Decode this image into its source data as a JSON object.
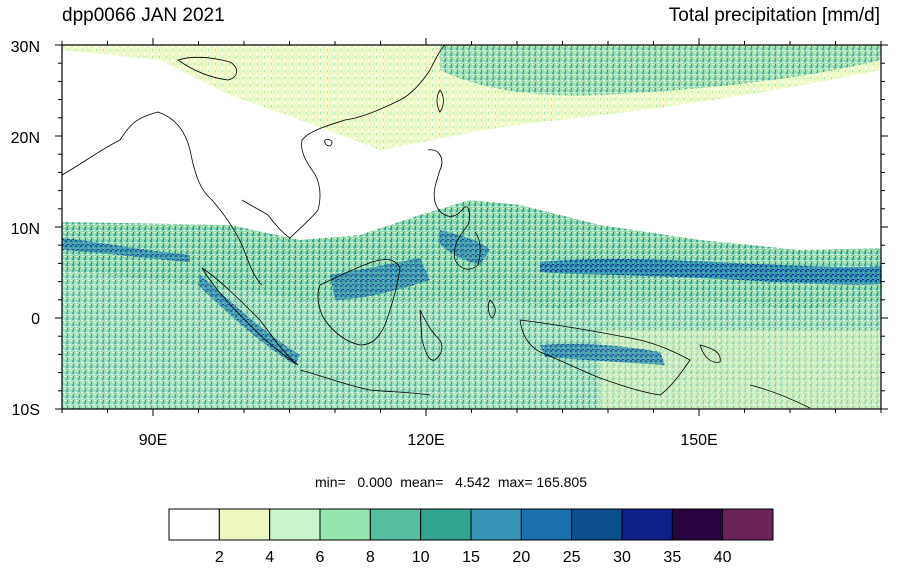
{
  "header": {
    "title_left": "dpp0066 JAN 2021",
    "title_right": "Total precipitation [mm/d]"
  },
  "map": {
    "lat_labels": [
      "30N",
      "20N",
      "10N",
      "0",
      "10S"
    ],
    "lon_labels": [
      "90E",
      "120E",
      "150E"
    ],
    "extent": {
      "lon_min": 80,
      "lon_max": 170,
      "lat_min": -10,
      "lat_max": 30
    }
  },
  "stats": {
    "text": "min=   0.000  mean=   4.542  max= 165.805"
  },
  "colorbar": {
    "levels": [
      "2",
      "4",
      "6",
      "8",
      "10",
      "15",
      "20",
      "25",
      "30",
      "35",
      "40"
    ],
    "colors": [
      "#ffffff",
      "#edf8c0",
      "#c9f5cd",
      "#95e6ae",
      "#56bea0",
      "#30a391",
      "#3593b5",
      "#1a6fae",
      "#0b4f8c",
      "#0e1f8a",
      "#27043f",
      "#6a2458"
    ]
  },
  "colors": {
    "land_outline": "#000000",
    "frame": "#000000"
  }
}
